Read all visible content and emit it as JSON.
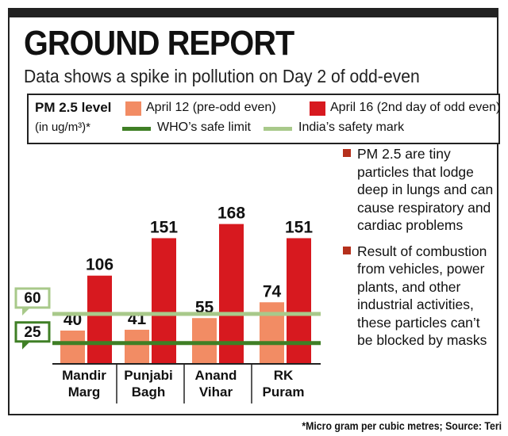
{
  "header": {
    "title": "GROUND REPORT",
    "subtitle": "Data shows a spike in pollution on Day 2 of odd-even"
  },
  "legend": {
    "title": "PM 2.5 level",
    "unit": "(in ug/m³)*",
    "series1": "April 12 (pre-odd even)",
    "series2": "April 16 (2nd day of odd even)",
    "ref1": "WHO’s safe limit",
    "ref2": "India’s safety mark"
  },
  "colors": {
    "series1": "#f28c64",
    "series2": "#d7191f",
    "who_line": "#3f7f25",
    "india_line": "#a8c98a",
    "bullet": "#b5301c"
  },
  "notes": [
    "PM 2.5 are tiny particles that lodge deep in lungs and can cause respiratory and cardiac problems",
    "Result of combustion from vehicles, power plants, and other industrial activities, these particles can’t be blocked by masks"
  ],
  "footnote": "*Micro gram per cubic metres; Source: Teri",
  "chart_data": {
    "type": "bar",
    "categories": [
      [
        "Mandir",
        "Marg"
      ],
      [
        "Punjabi",
        "Bagh"
      ],
      [
        "Anand",
        "Vihar"
      ],
      [
        "RK",
        "Puram"
      ]
    ],
    "series": [
      {
        "name": "April 12 (pre-odd even)",
        "values": [
          40,
          41,
          55,
          74
        ]
      },
      {
        "name": "April 16 (2nd day of odd even)",
        "values": [
          106,
          151,
          168,
          151
        ]
      }
    ],
    "reference_lines": [
      {
        "name": "WHO’s safe limit",
        "value": 25
      },
      {
        "name": "India’s safety mark",
        "value": 60
      }
    ],
    "ylim": [
      0,
      185
    ],
    "grid": false,
    "legend_position": "top"
  }
}
